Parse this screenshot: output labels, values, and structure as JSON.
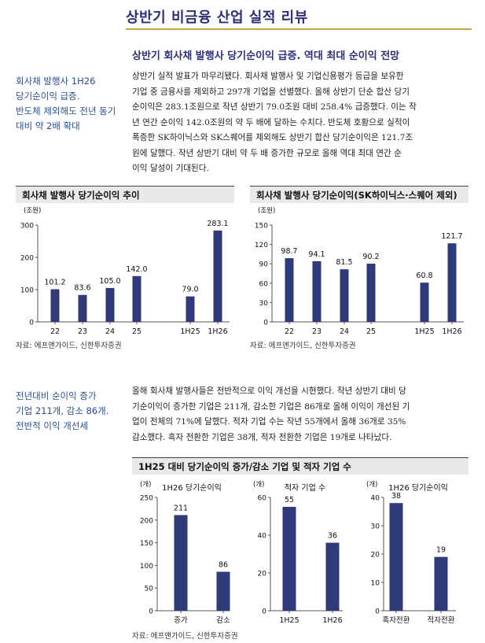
{
  "page_title": "상반기 비금융 산업 실적 리뷰",
  "subhead": "상반기 회사채 발행사 당기순이익 급증. 역대 최대 순이익 전망",
  "side_note_1": [
    "회사채 발행사 1H26",
    "당기순이익 급증.",
    "반도체 제외해도 전년 동기",
    "대비 약 2배 확대"
  ],
  "body_1": [
    "상반기 실적 발표가 마무리됐다. 회사채 발행사 및 기업신용평가 등급을 보유한",
    "기업 중 금융사를 제외하고 297개 기업을 선별했다. 올해 상반기 단순 합산 당기",
    "순이익은 283.1조원으로 작년 상반기 79.0조원 대비 258.4% 급증했다. 이는 작",
    "년 연간 순이익 142.0조원의 약 두 배에 달하는 수치다. 반도체 호황으로 실적이",
    "폭증한 SK하이닉스와 SK스퀘어를 제외해도 상반기 합산 당기순이익은 121.7조",
    "원에 달했다. 작년 상반기 대비 약 두 배 증가한 규모로 올해 역대 최대 연간 순",
    "이익 달성이 기대된다."
  ],
  "side_note_2": [
    "전년대비 순이익 증가",
    "기업 211개, 감소 86개.",
    "전반적 이익 개선세"
  ],
  "body_2": [
    "올해 회사채 발행사들은 전반적으로 이익 개선을 시현했다. 작년 상반기 대비 당",
    "기순이익이 증가한 기업은 211개, 감소한 기업은 86개로 올해 이익이 개선된 기",
    "업이 전체의 71%에 달했다. 적자 기업 수는 작년 55개에서 올해 36개로 35%",
    "감소했다. 흑자 전환한 기업은 38개, 적자 전환한 기업은 19개로 나타났다."
  ],
  "source_text": "자료: 에프앤가이드, 신한투자증권",
  "colors": {
    "bar": "#2e3a7a",
    "title": "#2c2f7a",
    "rule": "#c8a23c",
    "note": "#2a4f8f"
  },
  "chart_data": [
    {
      "type": "bar",
      "title": "회사채 발행사 당기순이익 추이",
      "unit": "(조원)",
      "categories": [
        "22",
        "23",
        "24",
        "25",
        "1H25",
        "1H26"
      ],
      "values": [
        101.2,
        83.6,
        105.0,
        142.0,
        79.0,
        283.1
      ],
      "value_labels": [
        "101.2",
        "83.6",
        "105.0",
        "142.0",
        "79.0",
        "283.1"
      ],
      "ylim": [
        0,
        300
      ],
      "yticks": [
        0,
        100,
        200,
        300
      ],
      "grid": false
    },
    {
      "type": "bar",
      "title": "회사채 발행사 당기순이익(SK하이닉스·스퀘어 제외)",
      "unit": "(조원)",
      "categories": [
        "22",
        "23",
        "24",
        "25",
        "1H25",
        "1H26"
      ],
      "values": [
        98.7,
        94.1,
        81.5,
        90.2,
        60.8,
        121.7
      ],
      "value_labels": [
        "98.7",
        "94.1",
        "81.5",
        "90.2",
        "60.8",
        "121.7"
      ],
      "ylim": [
        0,
        150
      ],
      "yticks": [
        0,
        30,
        60,
        90,
        120,
        150
      ],
      "grid": false
    },
    {
      "type": "bar",
      "group_title": "1H25 대비 당기순이익 증가/감소 기업 및 적자 기업 수",
      "title": "1H26 당기순이익",
      "unit": "(개)",
      "categories": [
        "증가",
        "감소"
      ],
      "values": [
        211,
        86
      ],
      "value_labels": [
        "211",
        "86"
      ],
      "ylim": [
        0,
        250
      ],
      "yticks": [
        0,
        50,
        100,
        150,
        200,
        250
      ],
      "grid": false
    },
    {
      "type": "bar",
      "title": "적자 기업 수",
      "unit": "(개)",
      "categories": [
        "1H25",
        "1H26"
      ],
      "values": [
        55,
        36
      ],
      "value_labels": [
        "55",
        "36"
      ],
      "ylim": [
        0,
        60
      ],
      "yticks": [
        0,
        20,
        40,
        60
      ],
      "grid": false
    },
    {
      "type": "bar",
      "title": "1H26 당기순이익",
      "unit": "(개)",
      "categories": [
        "흑자전환",
        "적자전환"
      ],
      "values": [
        38,
        19
      ],
      "value_labels": [
        "38",
        "19"
      ],
      "ylim": [
        0,
        40
      ],
      "yticks": [
        0,
        10,
        20,
        30,
        40
      ],
      "grid": false
    }
  ]
}
